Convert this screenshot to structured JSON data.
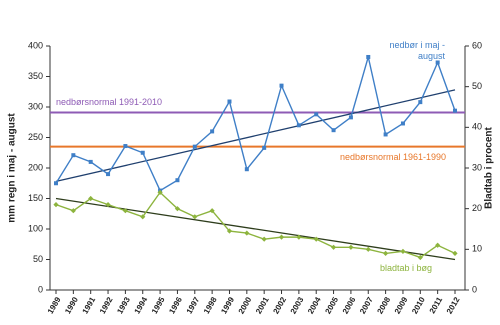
{
  "chart_data": {
    "type": "line",
    "y_label": "mm regn i maj - august",
    "y2_label": "Bladtab i procent",
    "categories": [
      "1989",
      "1990",
      "1991",
      "1992",
      "1993",
      "1994",
      "1995",
      "1996",
      "1997",
      "1998",
      "1999",
      "2000",
      "2001",
      "2002",
      "2003",
      "2004",
      "2005",
      "2006",
      "2007",
      "2008",
      "2009",
      "2010",
      "2011",
      "2012"
    ],
    "ylim": [
      0,
      400
    ],
    "yticks": [
      0,
      50,
      100,
      150,
      200,
      250,
      300,
      350,
      400
    ],
    "y2lim": [
      0,
      60
    ],
    "y2ticks": [
      0,
      10,
      20,
      30,
      40,
      50,
      60
    ],
    "grid": false,
    "series": [
      {
        "name": "nedbør i maj - august",
        "color": "#3f7fc7",
        "axis": "y",
        "marker": "square",
        "values": [
          175,
          221,
          210,
          190,
          236,
          225,
          163,
          180,
          235,
          260,
          309,
          198,
          233,
          335,
          270,
          288,
          262,
          283,
          382,
          255,
          273,
          308,
          373,
          294
        ],
        "trend": {
          "color": "#1f3f6e",
          "values": [
            178,
            328
          ]
        }
      },
      {
        "name": "bladtab i bøg",
        "color": "#8db43e",
        "axis": "y2",
        "marker": "diamond",
        "values": [
          21,
          19.5,
          22.5,
          21,
          19.5,
          18,
          24,
          20,
          18,
          19.5,
          14.5,
          14,
          12.5,
          13,
          13,
          12.5,
          10.5,
          10.5,
          10,
          9,
          9.5,
          8,
          11,
          9
        ],
        "trend": {
          "color": "#2e3d1c",
          "values": [
            22.5,
            7.5
          ]
        }
      }
    ],
    "reference_lines": [
      {
        "label": "nedbørsnormal 1991-2010",
        "value": 291,
        "color": "#8e5bb5"
      },
      {
        "label": "nedbørsnormal 1961-1990",
        "value": 235,
        "color": "#e8772a"
      }
    ]
  }
}
